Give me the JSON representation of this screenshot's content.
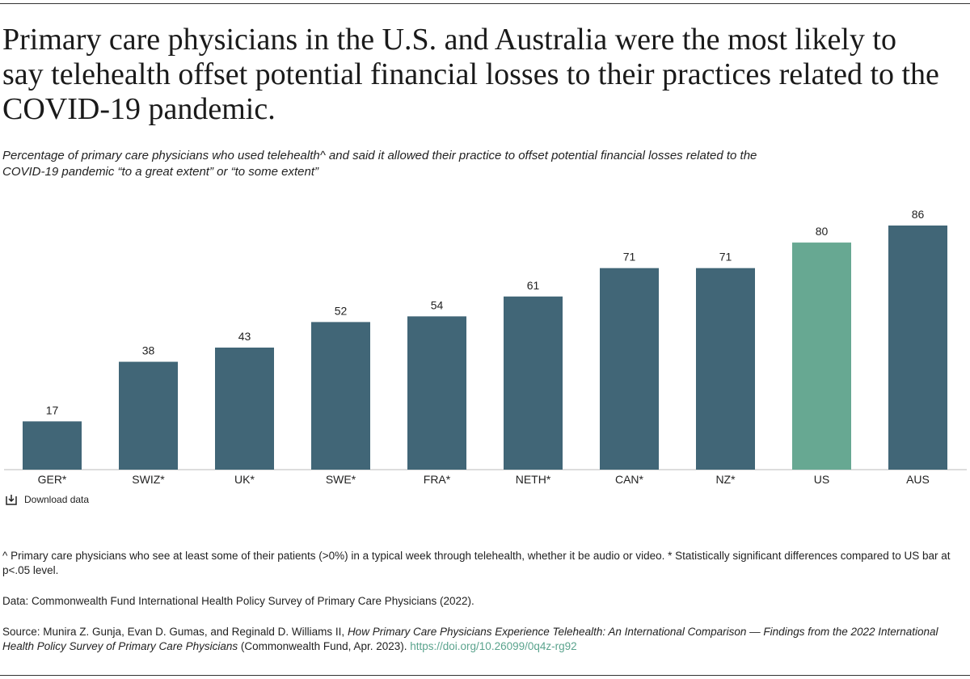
{
  "chart_data": {
    "type": "bar",
    "title": "Primary care physicians in the U.S. and Australia were the most likely to say telehealth offset potential financial losses to their practices related to the COVID-19 pandemic.",
    "subtitle": "Percentage of primary care physicians who used telehealth^ and said it allowed their practice to offset potential financial losses related to the COVID-19 pandemic “to a great extent” or “to some extent”",
    "categories": [
      "GER*",
      "SWIZ*",
      "UK*",
      "SWE*",
      "FRA*",
      "NETH*",
      "CAN*",
      "NZ*",
      "US",
      "AUS"
    ],
    "values": [
      17,
      38,
      43,
      52,
      54,
      61,
      71,
      71,
      80,
      86
    ],
    "colors": [
      "#416677",
      "#416677",
      "#416677",
      "#416677",
      "#416677",
      "#416677",
      "#416677",
      "#416677",
      "#67a892",
      "#416677"
    ],
    "download_label": "Download data"
  },
  "notes": {
    "footnote": "^ Primary care physicians who see at least some of their patients (>0%) in a typical week through telehealth, whether it be audio or video. * Statistically significant differences compared to US bar at p<.05 level.",
    "data": "Data: Commonwealth Fund International Health Policy Survey of Primary Care Physicians (2022).",
    "source_prefix": "Source: Munira Z. Gunja, Evan D. Gumas, and Reginald D. Williams II,",
    "source_title": "How Primary Care Physicians Experience Telehealth: An International Comparison — Findings from the 2022 International Health Policy Survey of Primary Care Physicians",
    "source_suffix": "(Commonwealth Fund, Apr. 2023).",
    "source_link": "https://doi.org/10.26099/0q4z-rg92"
  }
}
